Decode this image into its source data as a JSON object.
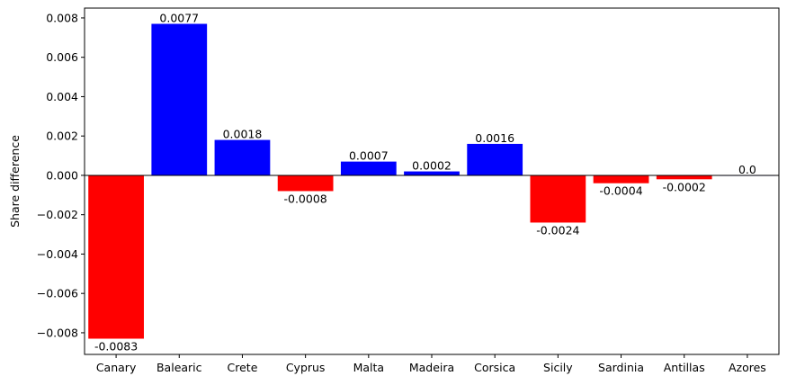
{
  "chart_data": {
    "type": "bar",
    "title": "",
    "xlabel": "",
    "ylabel": "Share difference",
    "categories": [
      "Canary",
      "Balearic",
      "Crete",
      "Cyprus",
      "Malta",
      "Madeira",
      "Corsica",
      "Sicily",
      "Sardinia",
      "Antillas",
      "Azores"
    ],
    "values": [
      -0.0083,
      0.0077,
      0.0018,
      -0.0008,
      0.0007,
      0.0002,
      0.0016,
      -0.0024,
      -0.0004,
      -0.0002,
      0.0
    ],
    "value_labels": [
      "-0.0083",
      "0.0077",
      "0.0018",
      "-0.0008",
      "0.0007",
      "0.0002",
      "0.0016",
      "-0.0024",
      "-0.0004",
      "-0.0002",
      "0.0"
    ],
    "ylim": [
      -0.0091,
      0.0085
    ],
    "yticks": [
      -0.008,
      -0.006,
      -0.004,
      -0.002,
      0.0,
      0.002,
      0.004,
      0.006,
      0.008
    ],
    "ytick_labels": [
      "−0.008",
      "−0.006",
      "−0.004",
      "−0.002",
      "0.000",
      "0.002",
      "0.004",
      "0.006",
      "0.008"
    ],
    "grid": false,
    "colors": {
      "positive": "#0000ff",
      "negative": "#ff0000",
      "zero_line": "#000000"
    }
  }
}
